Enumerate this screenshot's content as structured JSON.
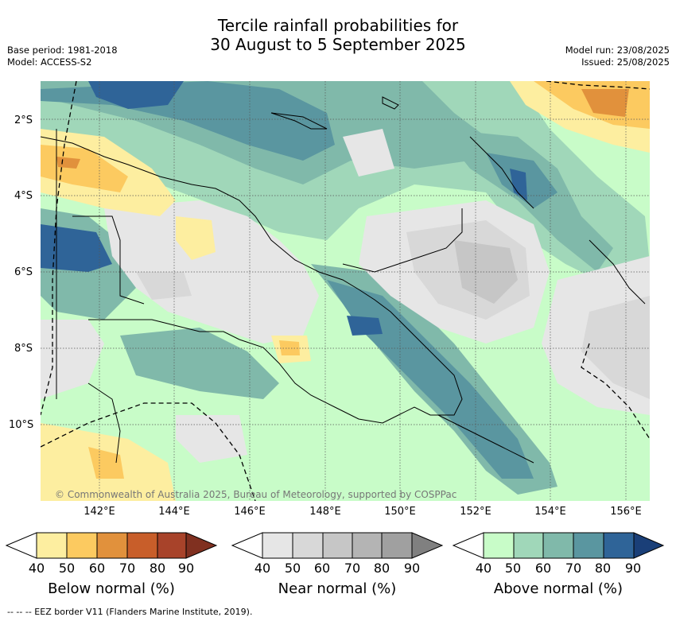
{
  "title": {
    "line1": "Tercile rainfall probabilities for",
    "line2": "30 August to 5 September 2025"
  },
  "meta": {
    "base_period": "Base period: 1981-2018",
    "model": "Model: ACCESS-S2",
    "model_run": "Model run: 23/08/2025",
    "issued": "Issued: 25/08/2025"
  },
  "map": {
    "lat_labels": [
      "2°S",
      "4°S",
      "6°S",
      "8°S",
      "10°S"
    ],
    "lon_labels": [
      "142°E",
      "144°E",
      "146°E",
      "148°E",
      "150°E",
      "152°E",
      "154°E",
      "156°E"
    ],
    "copyright": "© Commonwealth of Australia 2025, Bureau of Meteorology, supported by COSPPac"
  },
  "colorbars": {
    "below": {
      "label": "Below normal (%)",
      "ticks": [
        "40",
        "50",
        "60",
        "70",
        "80",
        "90"
      ],
      "colors": [
        "#fdeea0",
        "#fcca60",
        "#e1913c",
        "#c85e2a",
        "#a8432a",
        "#803020"
      ]
    },
    "near": {
      "label": "Near normal (%)",
      "ticks": [
        "40",
        "50",
        "60",
        "70",
        "80",
        "90"
      ],
      "colors": [
        "#e6e6e6",
        "#d8d8d8",
        "#c6c6c6",
        "#b4b4b4",
        "#a0a0a0",
        "#808080"
      ]
    },
    "above": {
      "label": "Above normal (%)",
      "ticks": [
        "40",
        "50",
        "60",
        "70",
        "80",
        "90"
      ],
      "colors": [
        "#c8fcc8",
        "#a0d7b9",
        "#80b9aa",
        "#5a96a0",
        "#2f6498",
        "#1a3f78"
      ]
    }
  },
  "footer": "--  --  -- EEZ border V11 (Flanders Marine Institute, 2019)."
}
